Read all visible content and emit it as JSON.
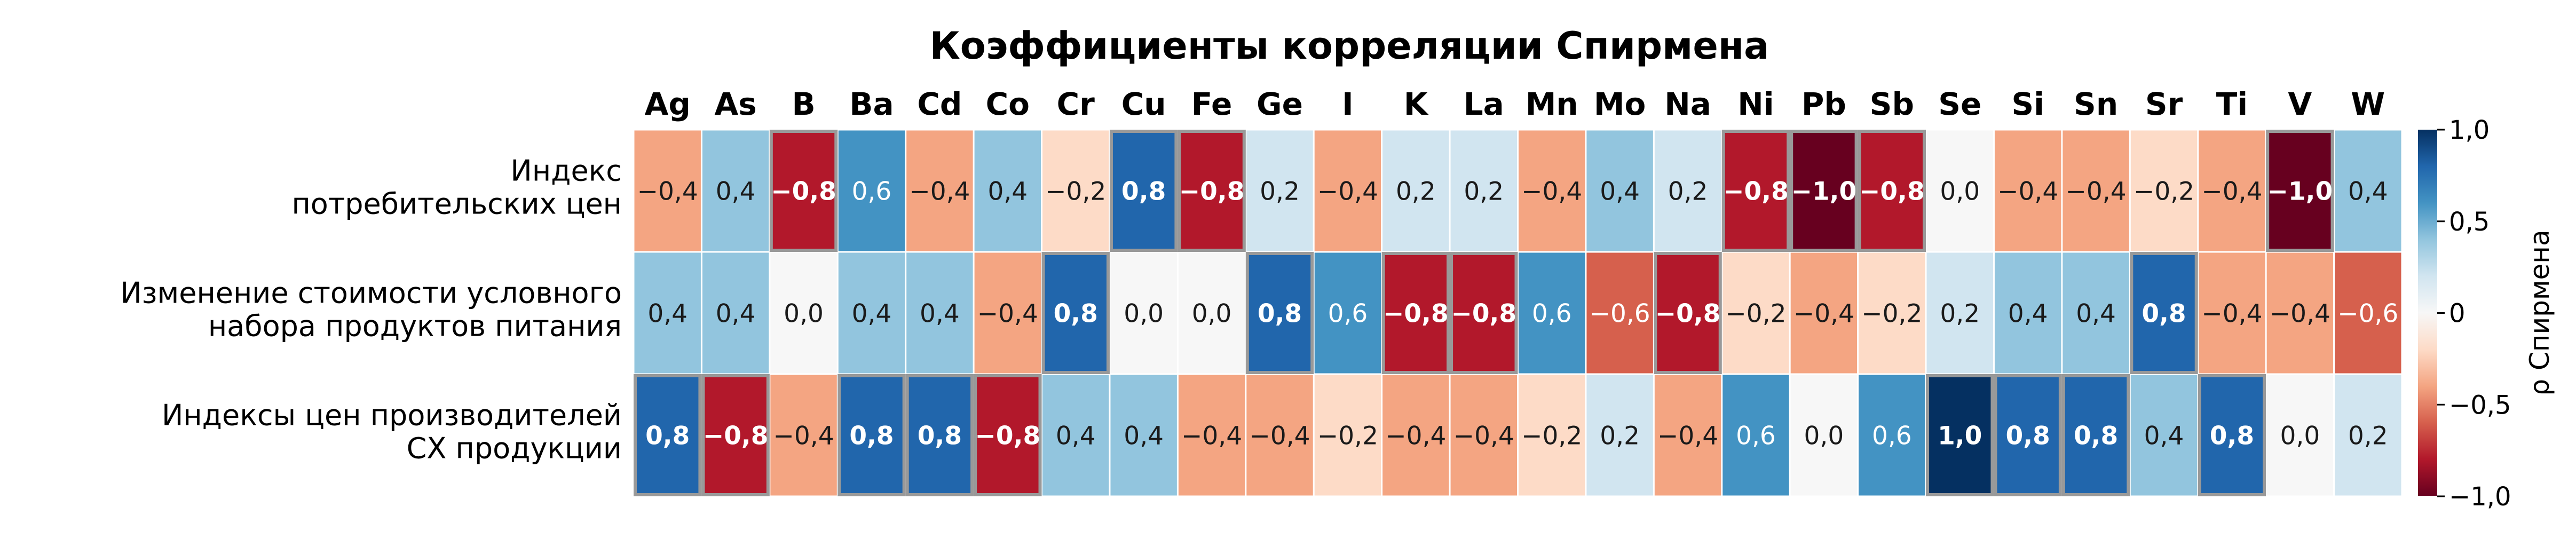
{
  "chart_data": {
    "type": "heatmap",
    "title": "Коэффициенты корреляции Спирмена",
    "columns": [
      "Ag",
      "As",
      "B",
      "Ba",
      "Cd",
      "Co",
      "Cr",
      "Cu",
      "Fe",
      "Ge",
      "I",
      "K",
      "La",
      "Mn",
      "Mo",
      "Na",
      "Ni",
      "Pb",
      "Sb",
      "Se",
      "Si",
      "Sn",
      "Sr",
      "Ti",
      "V",
      "W"
    ],
    "rows": [
      {
        "label_lines": [
          "Индекс",
          "потребительских цен"
        ],
        "values": [
          -0.4,
          0.4,
          -0.8,
          0.6,
          -0.4,
          0.4,
          -0.2,
          0.8,
          -0.8,
          0.2,
          -0.4,
          0.2,
          0.2,
          -0.4,
          0.4,
          0.2,
          -0.8,
          -1.0,
          -0.8,
          0.0,
          -0.4,
          -0.4,
          -0.2,
          -0.4,
          -1.0,
          0.4
        ]
      },
      {
        "label_lines": [
          "Изменение стоимости условного",
          "набора продуктов питания"
        ],
        "values": [
          0.4,
          0.4,
          0.0,
          0.4,
          0.4,
          -0.4,
          0.8,
          0.0,
          0.0,
          0.8,
          0.6,
          -0.8,
          -0.8,
          0.6,
          -0.6,
          -0.8,
          -0.2,
          -0.4,
          -0.2,
          0.2,
          0.4,
          0.4,
          0.8,
          -0.4,
          -0.4,
          -0.6
        ]
      },
      {
        "label_lines": [
          "Индексы цен производителей",
          "СХ продукции"
        ],
        "values": [
          0.8,
          -0.8,
          -0.4,
          0.8,
          0.8,
          -0.8,
          0.4,
          0.4,
          -0.4,
          -0.4,
          -0.2,
          -0.4,
          -0.4,
          -0.2,
          0.2,
          -0.4,
          0.6,
          0.0,
          0.6,
          1.0,
          0.8,
          0.8,
          0.4,
          0.8,
          0.0,
          0.2
        ]
      }
    ],
    "value_format": {
      "decimals": 1,
      "decimal_separator": ","
    },
    "colorbar": {
      "label": "ρ Спирмена",
      "range": [
        -1.0,
        1.0
      ],
      "ticks": [
        1.0,
        0.5,
        0,
        -0.5,
        -1.0
      ],
      "tick_labels": [
        "1,0",
        "0,5",
        "0",
        "−0,5",
        "−1,0"
      ],
      "colormap": "RdBu",
      "stops": [
        "#67001f",
        "#b2182b",
        "#d6604d",
        "#f4a582",
        "#fddbc7",
        "#f7f7f7",
        "#d1e5f0",
        "#92c5de",
        "#4393c3",
        "#2166ac",
        "#053061"
      ]
    },
    "highlight_threshold": 0.8,
    "highlight_border_color": "#999999",
    "grid": false
  }
}
